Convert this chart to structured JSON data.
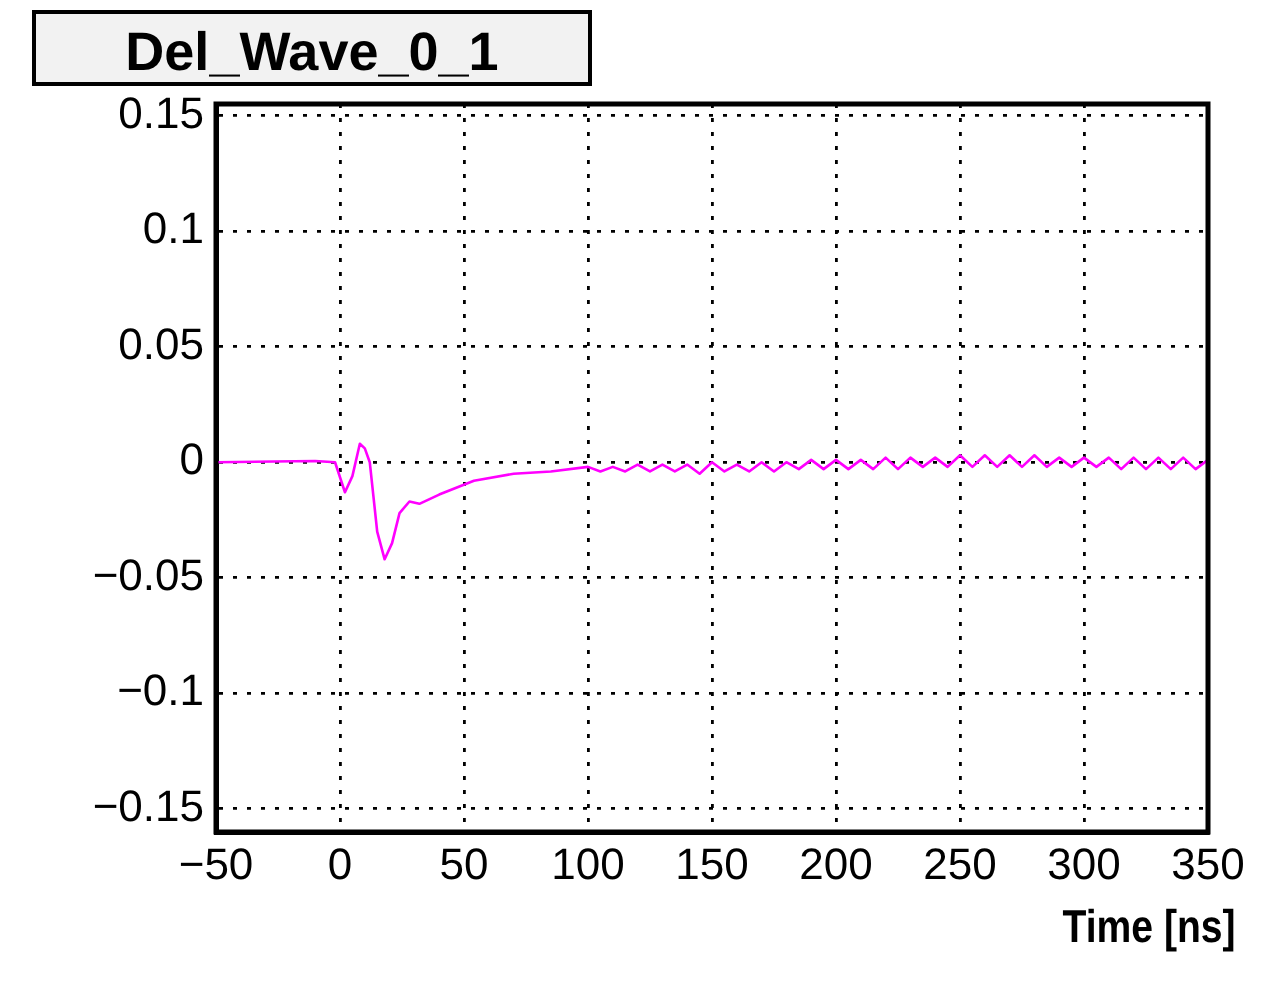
{
  "chart_data": {
    "type": "line",
    "title": "Del_Wave_0_1",
    "xlabel": "Time [ns]",
    "grid": true,
    "marker": "none",
    "line_style": "solid",
    "xlim": [
      -50,
      350
    ],
    "xticks": [
      {
        "value": -50,
        "label": "−50"
      },
      0,
      50,
      100,
      150,
      200,
      250,
      300,
      350
    ],
    "ylim": [
      -0.16,
      0.155
    ],
    "yticks": [
      {
        "value": -0.15,
        "label": "−0.15"
      },
      {
        "value": -0.1,
        "label": "−0.1"
      },
      {
        "value": -0.05,
        "label": "−0.05"
      },
      0,
      0.05,
      0.1,
      0.15
    ],
    "series": [
      {
        "color": "#ff00ff",
        "x": [
          -50,
          -10,
          -2,
          2,
          5,
          8,
          10,
          12,
          15,
          18,
          21,
          24,
          28,
          32,
          40,
          54,
          70,
          85,
          100,
          105,
          110,
          115,
          120,
          125,
          130,
          135,
          140,
          145,
          150,
          155,
          160,
          165,
          170,
          175,
          180,
          185,
          190,
          195,
          200,
          205,
          210,
          215,
          220,
          225,
          230,
          235,
          240,
          245,
          250,
          255,
          260,
          265,
          270,
          275,
          280,
          285,
          290,
          295,
          300,
          305,
          310,
          315,
          320,
          325,
          330,
          335,
          340,
          345,
          350
        ],
        "values": [
          0,
          0.0005,
          0,
          -0.013,
          -0.006,
          0.008,
          0.006,
          0,
          -0.03,
          -0.042,
          -0.035,
          -0.022,
          -0.017,
          -0.018,
          -0.014,
          -0.008,
          -0.005,
          -0.004,
          -0.002,
          -0.004,
          -0.002,
          -0.004,
          -0.001,
          -0.004,
          -0.001,
          -0.004,
          -0.001,
          -0.005,
          0,
          -0.004,
          -0.001,
          -0.004,
          0,
          -0.004,
          0,
          -0.003,
          0.001,
          -0.003,
          0.001,
          -0.003,
          0.001,
          -0.003,
          0.002,
          -0.003,
          0.002,
          -0.002,
          0.002,
          -0.002,
          0.003,
          -0.002,
          0.003,
          -0.002,
          0.003,
          -0.002,
          0.003,
          -0.002,
          0.002,
          -0.002,
          0.002,
          -0.002,
          0.002,
          -0.003,
          0.002,
          -0.003,
          0.002,
          -0.003,
          0.002,
          -0.003,
          0.001
        ]
      }
    ]
  }
}
